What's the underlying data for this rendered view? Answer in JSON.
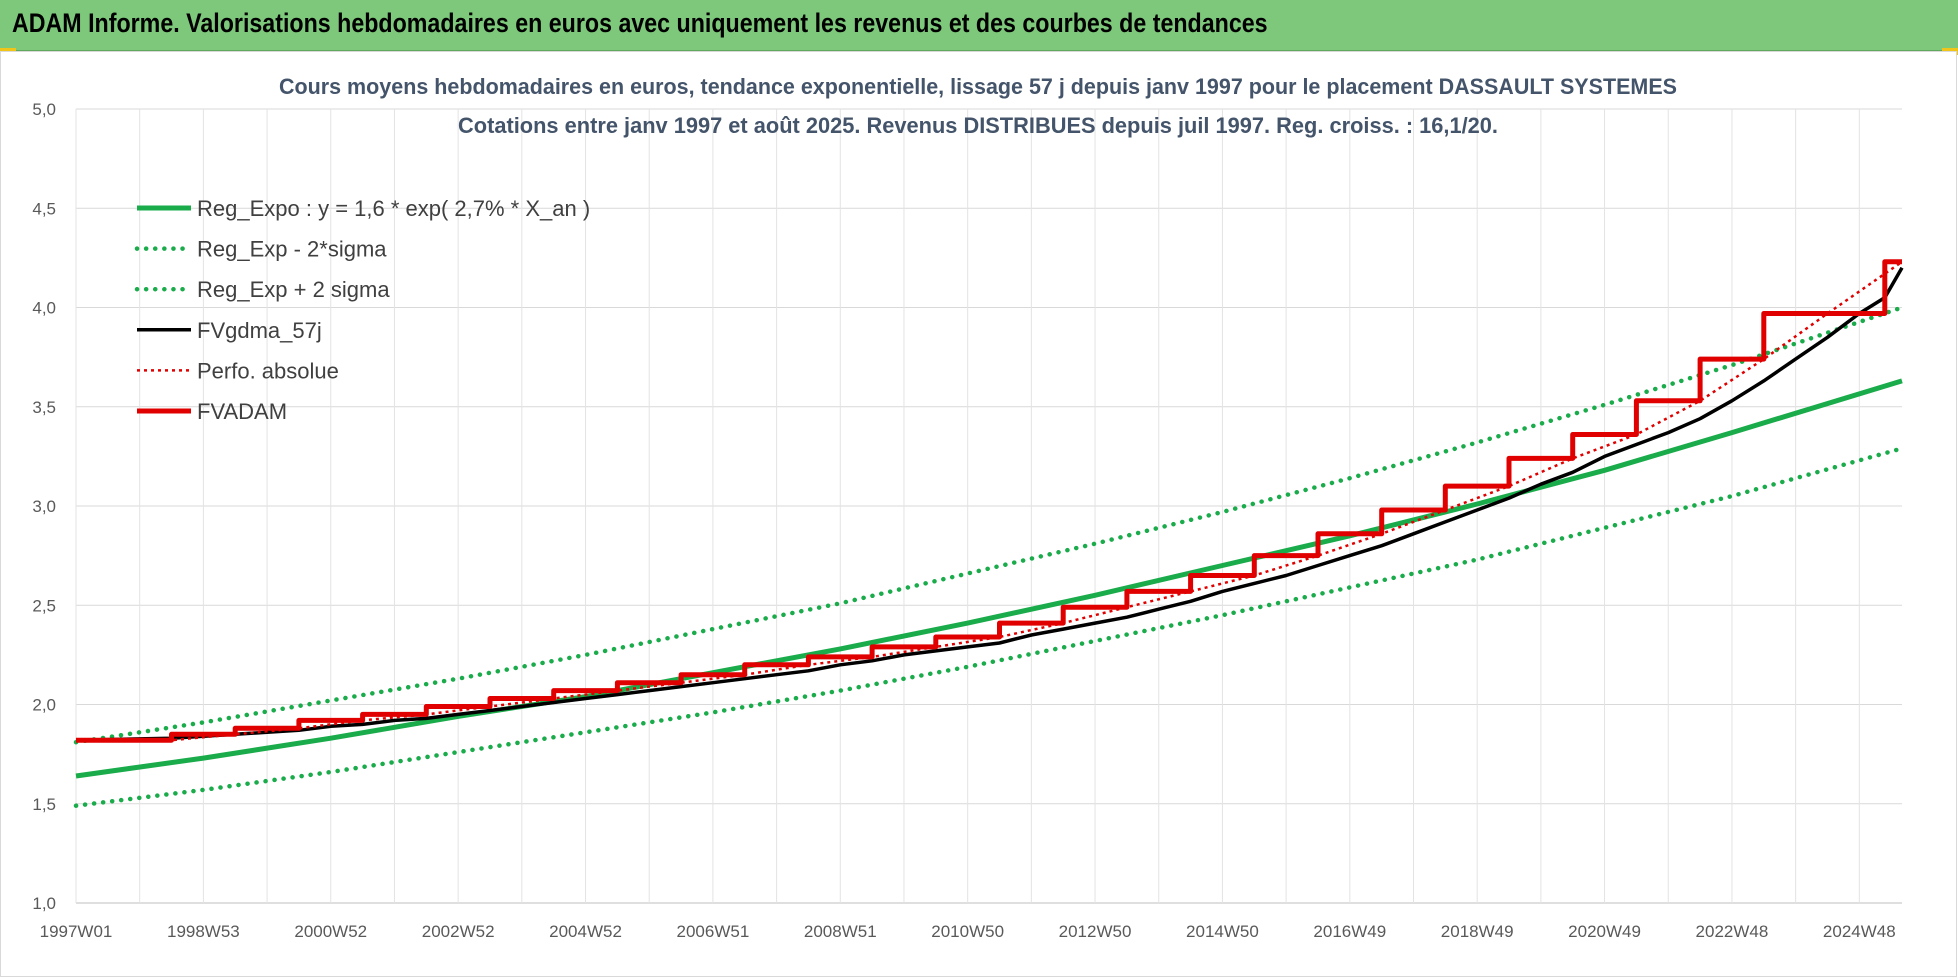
{
  "header": {
    "title": "ADAM Informe. Valorisations hebdomadaires en euros avec uniquement les revenus et des courbes de tendances"
  },
  "chart_data": {
    "type": "line",
    "title_line1": "Cours moyens hebdomadaires en euros, tendance exponentielle, lissage 57 j depuis janv 1997  pour le placement DASSAULT SYSTEMES",
    "title_line2": "Cotations entre janv 1997 et août 2025.  Revenus DISTRIBUES depuis juil 1997.  Reg. croiss. : 16,1/20.",
    "xlim": [
      1997.0,
      2025.67
    ],
    "ylim": [
      1.0,
      5.0
    ],
    "y_ticks": [
      "1,0",
      "1,5",
      "2,0",
      "2,5",
      "3,0",
      "3,5",
      "4,0",
      "4,5",
      "5,0"
    ],
    "x_ticks": [
      {
        "label": "1997W01",
        "x": 1997.0
      },
      {
        "label": "1998W53",
        "x": 1999.0
      },
      {
        "label": "2000W52",
        "x": 2001.0
      },
      {
        "label": "2002W52",
        "x": 2003.0
      },
      {
        "label": "2004W52",
        "x": 2005.0
      },
      {
        "label": "2006W51",
        "x": 2007.0
      },
      {
        "label": "2008W51",
        "x": 2009.0
      },
      {
        "label": "2010W50",
        "x": 2011.0
      },
      {
        "label": "2012W50",
        "x": 2013.0
      },
      {
        "label": "2014W50",
        "x": 2015.0
      },
      {
        "label": "2016W49",
        "x": 2017.0
      },
      {
        "label": "2018W49",
        "x": 2019.0
      },
      {
        "label": "2020W49",
        "x": 2021.0
      },
      {
        "label": "2022W48",
        "x": 2023.0
      },
      {
        "label": "2024W48",
        "x": 2025.0
      }
    ],
    "grid": true,
    "legend_position": "top-left",
    "series": [
      {
        "name": "Reg_Expo : y = 1,6 * exp( 2,7% *  X_an )",
        "style": "solid",
        "color": "#1aab4b",
        "x": [
          1997.0,
          1999.0,
          2001.0,
          2003.0,
          2005.0,
          2007.0,
          2009.0,
          2011.0,
          2013.0,
          2015.0,
          2017.0,
          2019.0,
          2021.0,
          2023.0,
          2025.67
        ],
        "y": [
          1.64,
          1.73,
          1.83,
          1.94,
          2.04,
          2.16,
          2.28,
          2.41,
          2.55,
          2.7,
          2.85,
          3.01,
          3.18,
          3.37,
          3.63
        ]
      },
      {
        "name": "Reg_Exp - 2*sigma",
        "style": "dotted",
        "color": "#1aab4b",
        "x": [
          1997.0,
          1999.0,
          2001.0,
          2003.0,
          2005.0,
          2007.0,
          2009.0,
          2011.0,
          2013.0,
          2015.0,
          2017.0,
          2019.0,
          2021.0,
          2023.0,
          2025.67
        ],
        "y": [
          1.49,
          1.57,
          1.66,
          1.76,
          1.86,
          1.96,
          2.07,
          2.19,
          2.32,
          2.45,
          2.59,
          2.73,
          2.89,
          3.05,
          3.29
        ]
      },
      {
        "name": "Reg_Exp + 2 sigma",
        "style": "dotted",
        "color": "#1aab4b",
        "x": [
          1997.0,
          1999.0,
          2001.0,
          2003.0,
          2005.0,
          2007.0,
          2009.0,
          2011.0,
          2013.0,
          2015.0,
          2017.0,
          2019.0,
          2021.0,
          2023.0,
          2025.67
        ],
        "y": [
          1.81,
          1.91,
          2.02,
          2.13,
          2.25,
          2.38,
          2.51,
          2.66,
          2.81,
          2.97,
          3.14,
          3.32,
          3.51,
          3.71,
          4.0
        ]
      },
      {
        "name": "FVgdma_57j",
        "style": "solid",
        "color": "#000000",
        "x": [
          1997.0,
          1998.5,
          1999.0,
          1999.5,
          2000.0,
          2000.5,
          2001.0,
          2001.5,
          2002.0,
          2002.5,
          2003.0,
          2003.5,
          2004.0,
          2004.5,
          2005.0,
          2005.5,
          2006.0,
          2006.5,
          2007.0,
          2007.5,
          2008.0,
          2008.5,
          2009.0,
          2009.5,
          2010.0,
          2010.5,
          2011.0,
          2011.5,
          2012.0,
          2012.5,
          2013.0,
          2013.5,
          2014.0,
          2014.5,
          2015.0,
          2015.5,
          2016.0,
          2016.5,
          2017.0,
          2017.5,
          2018.0,
          2018.5,
          2019.0,
          2019.5,
          2020.0,
          2020.5,
          2021.0,
          2021.5,
          2022.0,
          2022.5,
          2023.0,
          2023.5,
          2024.0,
          2024.5,
          2025.0,
          2025.4,
          2025.67
        ],
        "y": [
          1.82,
          1.83,
          1.84,
          1.85,
          1.86,
          1.87,
          1.89,
          1.9,
          1.92,
          1.93,
          1.95,
          1.97,
          1.99,
          2.01,
          2.03,
          2.05,
          2.07,
          2.09,
          2.11,
          2.13,
          2.15,
          2.17,
          2.2,
          2.22,
          2.25,
          2.27,
          2.29,
          2.31,
          2.35,
          2.38,
          2.41,
          2.44,
          2.48,
          2.52,
          2.57,
          2.61,
          2.65,
          2.7,
          2.75,
          2.8,
          2.86,
          2.92,
          2.98,
          3.04,
          3.11,
          3.17,
          3.25,
          3.31,
          3.37,
          3.44,
          3.53,
          3.63,
          3.74,
          3.85,
          3.97,
          4.05,
          4.2
        ]
      },
      {
        "name": "Perfo. absolue",
        "style": "dotted",
        "color": "#e00000",
        "x": [
          1997.0,
          1998.5,
          1999.5,
          2000.5,
          2001.5,
          2002.5,
          2003.5,
          2004.5,
          2005.5,
          2006.5,
          2007.5,
          2008.5,
          2009.5,
          2010.5,
          2011.5,
          2012.5,
          2013.5,
          2014.5,
          2015.5,
          2016.5,
          2017.5,
          2018.5,
          2019.5,
          2020.5,
          2021.5,
          2022.5,
          2023.5,
          2024.5,
          2025.67
        ],
        "y": [
          1.82,
          1.82,
          1.85,
          1.88,
          1.92,
          1.95,
          1.99,
          2.03,
          2.07,
          2.11,
          2.15,
          2.2,
          2.24,
          2.29,
          2.34,
          2.41,
          2.49,
          2.57,
          2.65,
          2.75,
          2.86,
          2.98,
          3.1,
          3.24,
          3.36,
          3.53,
          3.74,
          3.97,
          4.23
        ]
      },
      {
        "name": "FVADAM",
        "style": "solid",
        "color": "#e00000",
        "x": [
          1997.0,
          1998.5,
          1998.5,
          1999.5,
          1999.5,
          2000.5,
          2000.5,
          2001.5,
          2001.5,
          2002.5,
          2002.5,
          2003.5,
          2003.5,
          2004.5,
          2004.5,
          2005.5,
          2005.5,
          2006.5,
          2006.5,
          2007.5,
          2007.5,
          2008.5,
          2008.5,
          2009.5,
          2009.5,
          2010.5,
          2010.5,
          2011.5,
          2011.5,
          2012.5,
          2012.5,
          2013.5,
          2013.5,
          2014.5,
          2014.5,
          2015.5,
          2015.5,
          2016.5,
          2016.5,
          2017.5,
          2017.5,
          2018.5,
          2018.5,
          2019.5,
          2019.5,
          2020.5,
          2020.5,
          2021.5,
          2021.5,
          2022.5,
          2022.5,
          2023.5,
          2023.5,
          2024.5,
          2024.5,
          2025.4,
          2025.4,
          2025.67
        ],
        "y": [
          1.82,
          1.82,
          1.85,
          1.85,
          1.88,
          1.88,
          1.92,
          1.92,
          1.95,
          1.95,
          1.99,
          1.99,
          2.03,
          2.03,
          2.07,
          2.07,
          2.11,
          2.11,
          2.15,
          2.15,
          2.2,
          2.2,
          2.24,
          2.24,
          2.29,
          2.29,
          2.34,
          2.34,
          2.41,
          2.41,
          2.49,
          2.49,
          2.57,
          2.57,
          2.65,
          2.65,
          2.75,
          2.75,
          2.86,
          2.86,
          2.98,
          2.98,
          3.1,
          3.1,
          3.24,
          3.24,
          3.36,
          3.36,
          3.53,
          3.53,
          3.74,
          3.74,
          3.97,
          3.97,
          3.97,
          3.97,
          4.23,
          4.23
        ]
      }
    ]
  }
}
